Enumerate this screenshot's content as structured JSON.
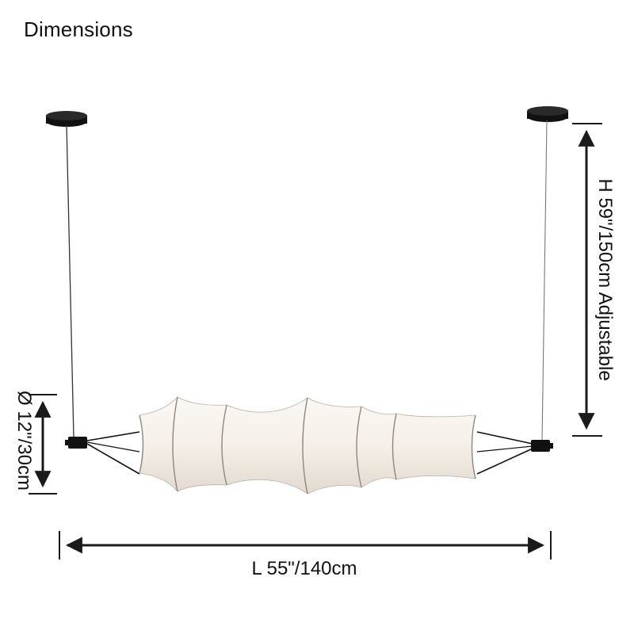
{
  "title": "Dimensions",
  "dimensions": {
    "height": "H 59\"/150cm Adjustable",
    "diameter": "Ø 12\"/30cm",
    "length": "L 55\"/140cm"
  },
  "colors": {
    "line": "#1a1a1a",
    "shade": "#f4efe8",
    "shade_shadow": "#e6ddd2",
    "rib": "#9a9288",
    "hardware": "#111111"
  }
}
